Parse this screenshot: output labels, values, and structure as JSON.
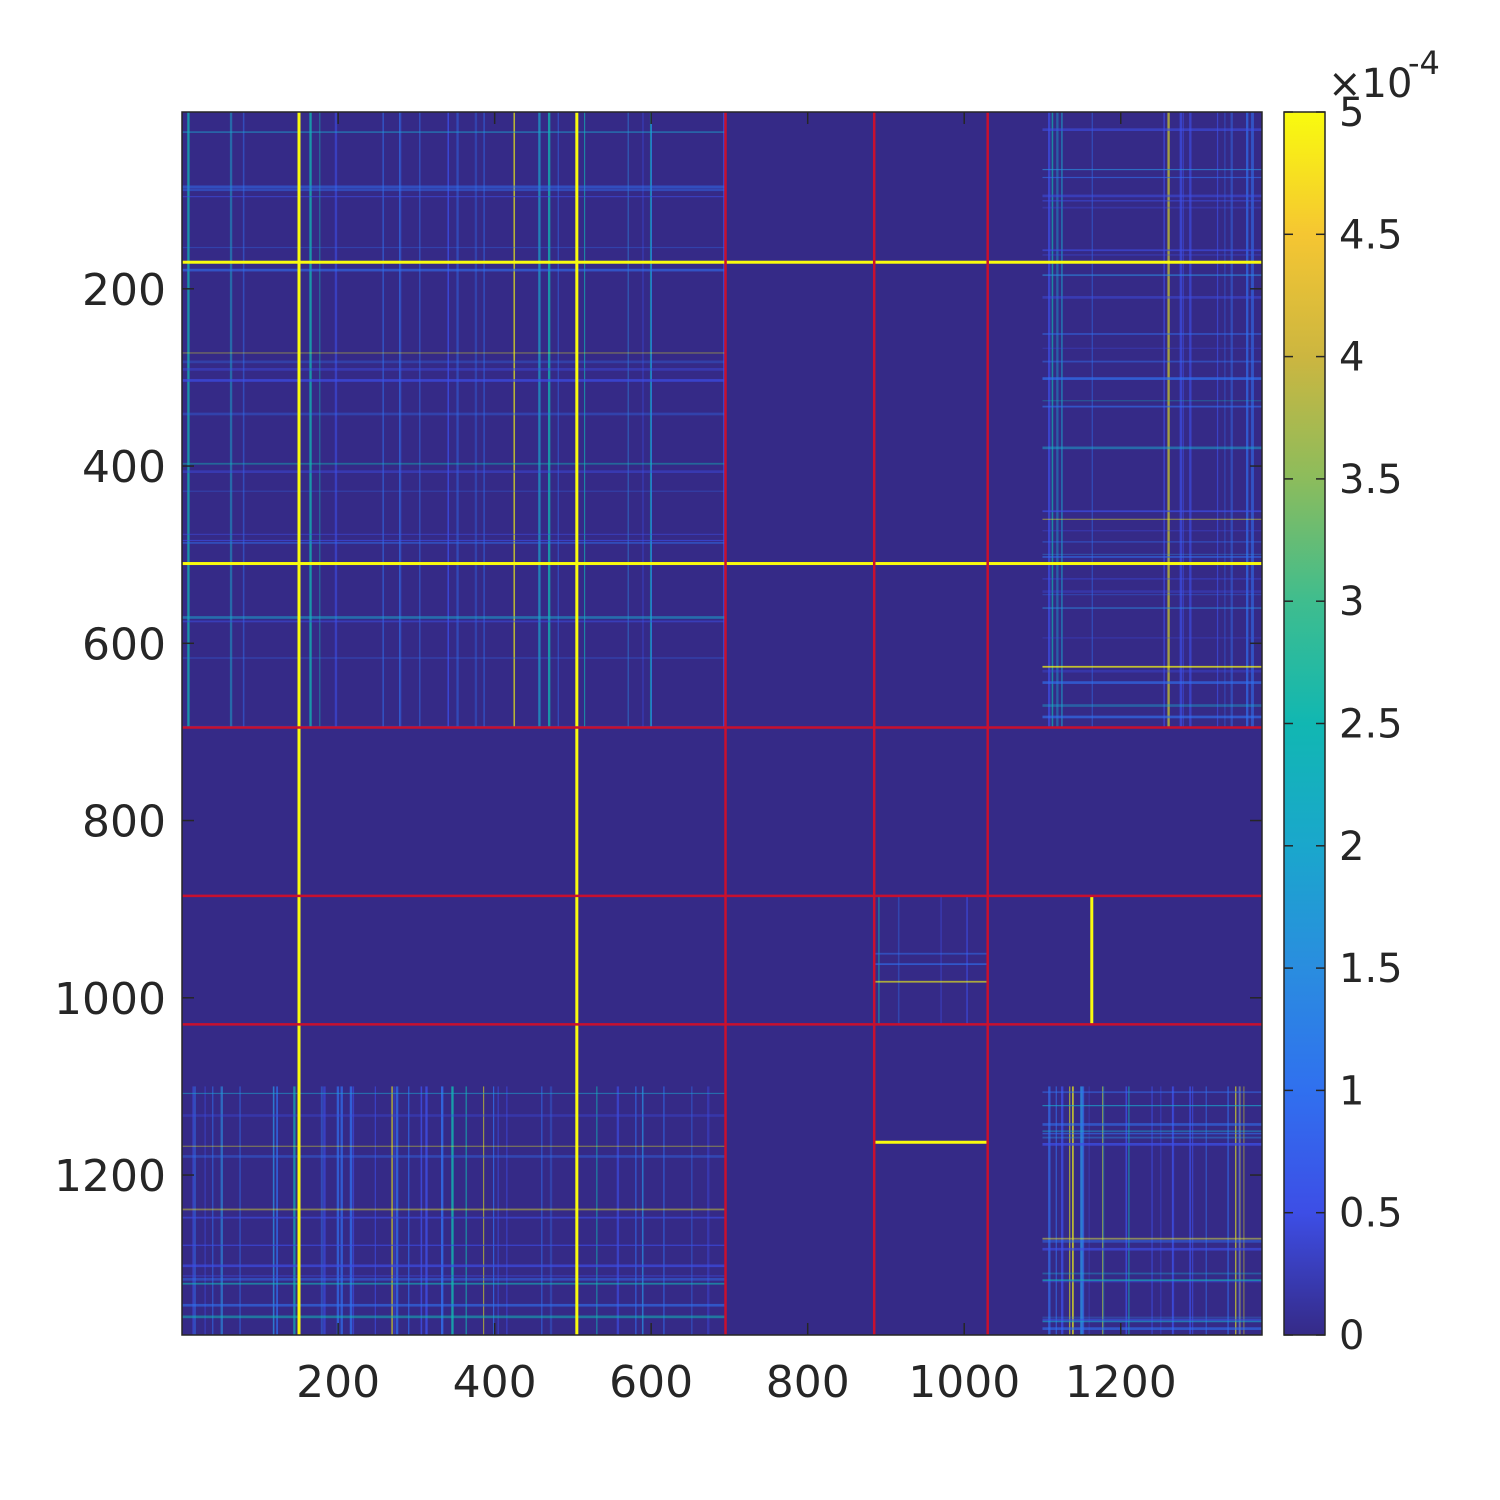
{
  "chart_data": {
    "type": "heatmap",
    "title": "",
    "xlabel": "",
    "ylabel": "",
    "matrix_size": 1380,
    "xlim": [
      1,
      1380
    ],
    "ylim": [
      1,
      1380
    ],
    "x_ticks": [
      200,
      400,
      600,
      800,
      1000,
      1200
    ],
    "x_tick_labels": [
      "200",
      "400",
      "600",
      "800",
      "1000",
      "1200"
    ],
    "y_ticks": [
      200,
      400,
      600,
      800,
      1000,
      1200
    ],
    "y_tick_labels": [
      "200",
      "400",
      "600",
      "800",
      "1000",
      "1200"
    ],
    "color_limits": [
      0,
      0.0005
    ],
    "colorbar": {
      "ticks": [
        0,
        0.5,
        1,
        1.5,
        2,
        2.5,
        3,
        3.5,
        4,
        4.5,
        5
      ],
      "tick_labels": [
        "0",
        "0.5",
        "1",
        "1.5",
        "2",
        "2.5",
        "3",
        "3.5",
        "4",
        "4.5",
        "5"
      ],
      "multiplier": "×10",
      "exponent": "-4"
    },
    "colormap": "parula",
    "block_boundaries": [
      695,
      885,
      1030
    ],
    "boundary_color": "#c8102e",
    "background_value": 1e-05,
    "blocks": [
      {
        "rows": [
          1,
          695
        ],
        "cols": [
          1,
          695
        ],
        "density": "medium"
      },
      {
        "rows": [
          1,
          695
        ],
        "cols": [
          1100,
          1380
        ],
        "density": "high"
      },
      {
        "rows": [
          1100,
          1380
        ],
        "cols": [
          1,
          695
        ],
        "density": "high"
      },
      {
        "rows": [
          1100,
          1380
        ],
        "cols": [
          1100,
          1380
        ],
        "density": "very high"
      },
      {
        "rows": [
          885,
          1030
        ],
        "cols": [
          885,
          1030
        ],
        "density": "pattern"
      }
    ],
    "bright_lines": [
      {
        "orientation": "horizontal",
        "position": 170,
        "from": 1,
        "to": 1380,
        "value": 0.0005
      },
      {
        "orientation": "horizontal",
        "position": 510,
        "from": 1,
        "to": 1380,
        "value": 0.0005
      },
      {
        "orientation": "vertical",
        "position": 150,
        "from": 1,
        "to": 1380,
        "value": 0.0005
      },
      {
        "orientation": "vertical",
        "position": 505,
        "from": 1,
        "to": 1380,
        "value": 0.0005
      },
      {
        "orientation": "vertical",
        "position": 1163,
        "from": 885,
        "to": 1030,
        "value": 0.0005
      },
      {
        "orientation": "horizontal",
        "position": 1163,
        "from": 885,
        "to": 1030,
        "value": 0.0005
      }
    ]
  }
}
